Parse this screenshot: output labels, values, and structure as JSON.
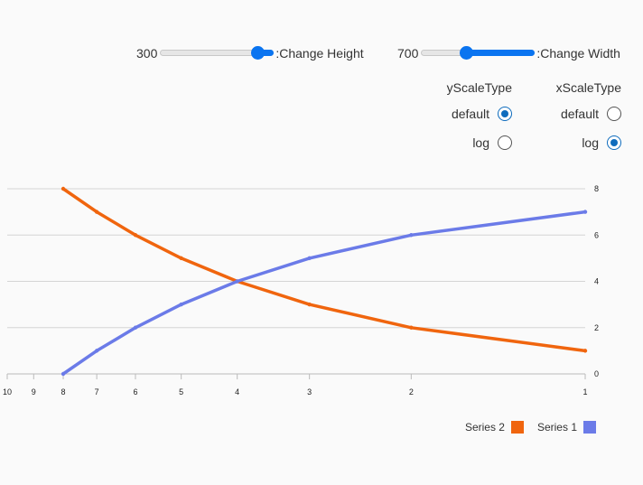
{
  "controls": {
    "height_slider": {
      "value": "300",
      "label": ":Change Height",
      "fraction": 0.86
    },
    "width_slider": {
      "value": "700",
      "label": ":Change Width",
      "fraction": 0.4
    }
  },
  "y_scale": {
    "heading": "yScaleType",
    "options": [
      {
        "label": "default",
        "checked": true
      },
      {
        "label": "log",
        "checked": false
      }
    ]
  },
  "x_scale": {
    "heading": "xScaleType",
    "options": [
      {
        "label": "default",
        "checked": false
      },
      {
        "label": "log",
        "checked": true
      }
    ]
  },
  "colors": {
    "series_2": "#f0650e",
    "series_1": "#6b7be8",
    "accent": "#0a74f0",
    "grid": "#d4d4d4"
  },
  "chart_data": {
    "type": "line",
    "x_scale": "log",
    "x_reversed": true,
    "xlim": [
      1,
      10
    ],
    "ylim": [
      0,
      8
    ],
    "x_ticks": [
      10,
      9,
      8,
      7,
      6,
      5,
      4,
      3,
      2,
      1
    ],
    "y_ticks": [
      0,
      2,
      4,
      6,
      8
    ],
    "grid": true,
    "y_axis_position": "right",
    "legend_position": "bottom-right",
    "series": [
      {
        "name": "Series 2",
        "color": "#f0650e",
        "points": [
          [
            8,
            8
          ],
          [
            7,
            7
          ],
          [
            6,
            6
          ],
          [
            5,
            5
          ],
          [
            4,
            4
          ],
          [
            3,
            3
          ],
          [
            2,
            2
          ],
          [
            1,
            1
          ]
        ]
      },
      {
        "name": "Series 1",
        "color": "#6b7be8",
        "points": [
          [
            8,
            0
          ],
          [
            7,
            1
          ],
          [
            6,
            2
          ],
          [
            5,
            3
          ],
          [
            4,
            4
          ],
          [
            3,
            5
          ],
          [
            2,
            6
          ],
          [
            1,
            7
          ]
        ]
      }
    ]
  }
}
